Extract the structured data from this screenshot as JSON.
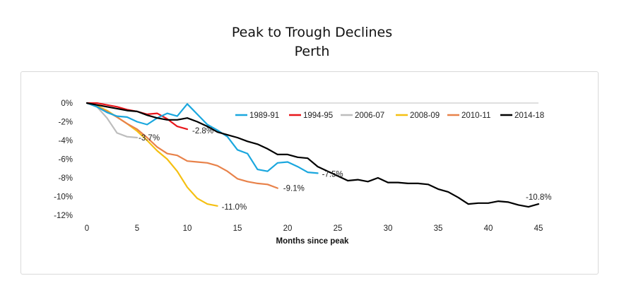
{
  "chart_data": {
    "type": "line",
    "title": "Peak to Trough Declines",
    "subtitle": "Perth",
    "xlabel": "Months since peak",
    "ylabel": "",
    "xlim": [
      0,
      45
    ],
    "ylim": [
      -12,
      0
    ],
    "x_ticks": [
      0,
      5,
      10,
      15,
      20,
      25,
      30,
      35,
      40,
      45
    ],
    "y_ticks": [
      0,
      -2,
      -4,
      -6,
      -8,
      -10,
      -12
    ],
    "y_tick_labels": [
      "0%",
      "-2%",
      "-4%",
      "-6%",
      "-8%",
      "-10%",
      "-12%"
    ],
    "grid": false,
    "legend_position": "top-right",
    "series": [
      {
        "name": "1989-91",
        "color": "#1aa7de",
        "end_label": "-7.5%",
        "values": [
          0,
          -0.4,
          -1.0,
          -1.4,
          -1.5,
          -2.0,
          -2.3,
          -1.6,
          -1.1,
          -1.4,
          -0.1,
          -1.2,
          -2.3,
          -2.9,
          -3.6,
          -5.0,
          -5.4,
          -7.1,
          -7.3,
          -6.4,
          -6.3,
          -6.8,
          -7.4,
          -7.5
        ]
      },
      {
        "name": "1994-95",
        "color": "#e8161b",
        "end_label": "-2.8%",
        "values": [
          0,
          0,
          -0.2,
          -0.4,
          -0.7,
          -0.9,
          -1.2,
          -1.1,
          -1.7,
          -2.5,
          -2.8
        ]
      },
      {
        "name": "2006-07",
        "color": "#bdbdbd",
        "end_label": "-3.7%",
        "values": [
          0,
          -0.4,
          -1.6,
          -3.2,
          -3.6,
          -3.7
        ]
      },
      {
        "name": "2008-09",
        "color": "#f5c012",
        "end_label": "-11.0%",
        "values": [
          0,
          -0.3,
          -0.8,
          -1.5,
          -2.2,
          -3.0,
          -4.0,
          -5.1,
          -6.0,
          -7.3,
          -9.0,
          -10.2,
          -10.8,
          -11.0
        ]
      },
      {
        "name": "2010-11",
        "color": "#e8824a",
        "end_label": "-9.1%",
        "values": [
          0,
          -0.4,
          -0.9,
          -1.5,
          -2.2,
          -2.8,
          -3.7,
          -4.7,
          -5.4,
          -5.6,
          -6.2,
          -6.3,
          -6.4,
          -6.7,
          -7.3,
          -8.1,
          -8.4,
          -8.6,
          -8.7,
          -9.1
        ]
      },
      {
        "name": "2014-18",
        "color": "#000000",
        "end_label": "-10.8%",
        "values": [
          0,
          -0.2,
          -0.4,
          -0.6,
          -0.8,
          -0.9,
          -1.3,
          -1.6,
          -1.8,
          -1.8,
          -1.6,
          -2.0,
          -2.5,
          -3.1,
          -3.4,
          -3.7,
          -4.1,
          -4.4,
          -4.9,
          -5.5,
          -5.5,
          -5.8,
          -5.9,
          -6.8,
          -7.3,
          -7.8,
          -8.3,
          -8.2,
          -8.4,
          -8.0,
          -8.5,
          -8.5,
          -8.6,
          -8.6,
          -8.7,
          -9.2,
          -9.5,
          -10.1,
          -10.8,
          -10.7,
          -10.7,
          -10.5,
          -10.6,
          -10.9,
          -11.1,
          -10.8
        ]
      }
    ]
  }
}
